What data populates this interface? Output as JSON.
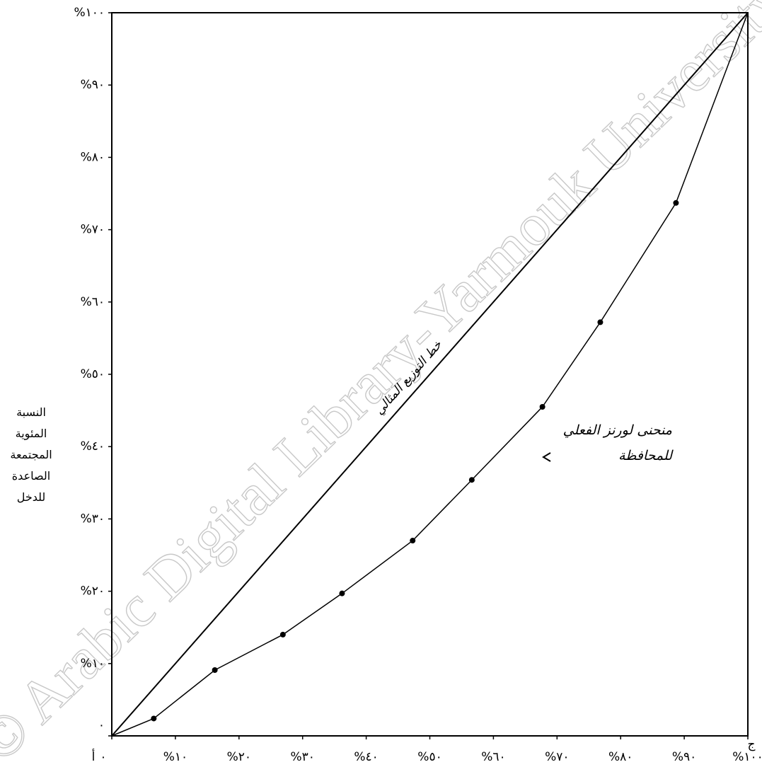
{
  "chart_data": {
    "type": "line",
    "ylabel": "النسبة المئوية المجتمعة الصاعدة للدخل",
    "watermark": "© Arabic Digital Library-Yarmouk University",
    "corner_labels": [
      "أ",
      "ج"
    ],
    "xlim": [
      0,
      100
    ],
    "ylim": [
      0,
      100
    ],
    "xticks": [
      {
        "value": 0,
        "label": "٠"
      },
      {
        "value": 10,
        "label": "%١٠"
      },
      {
        "value": 20,
        "label": "%٢٠"
      },
      {
        "value": 30,
        "label": "%٣٠"
      },
      {
        "value": 40,
        "label": "%٤٠"
      },
      {
        "value": 50,
        "label": "%٥٠"
      },
      {
        "value": 60,
        "label": "%٦٠"
      },
      {
        "value": 70,
        "label": "%٧٠"
      },
      {
        "value": 80,
        "label": "%٨٠"
      },
      {
        "value": 90,
        "label": "%٩٠"
      },
      {
        "value": 100,
        "label": "%١٠٠"
      }
    ],
    "yticks": [
      {
        "value": 0,
        "label": "٠"
      },
      {
        "value": 10,
        "label": "%١٠"
      },
      {
        "value": 20,
        "label": "%٢٠"
      },
      {
        "value": 30,
        "label": "%٣٠"
      },
      {
        "value": 40,
        "label": "%٤٠"
      },
      {
        "value": 50,
        "label": "%٥٠"
      },
      {
        "value": 60,
        "label": "%٦٠"
      },
      {
        "value": 70,
        "label": "%٧٠"
      },
      {
        "value": 80,
        "label": "%٨٠"
      },
      {
        "value": 90,
        "label": "%٩٠"
      },
      {
        "value": 100,
        "label": "%١٠٠"
      }
    ],
    "series": [
      {
        "name": "خط التوزيع المثالي",
        "color": "#000000",
        "x": [
          0,
          100
        ],
        "values": [
          0,
          100
        ]
      },
      {
        "name": "منحنى لورنز الفعلي للمحافظة",
        "color": "#000000",
        "x": [
          0,
          6.6,
          16.2,
          26.9,
          36.2,
          47.3,
          56.6,
          67.7,
          76.8,
          88.7,
          100
        ],
        "values": [
          0,
          2.4,
          9.1,
          14.0,
          19.7,
          27.0,
          35.4,
          45.5,
          57.2,
          73.7,
          100
        ]
      }
    ]
  }
}
